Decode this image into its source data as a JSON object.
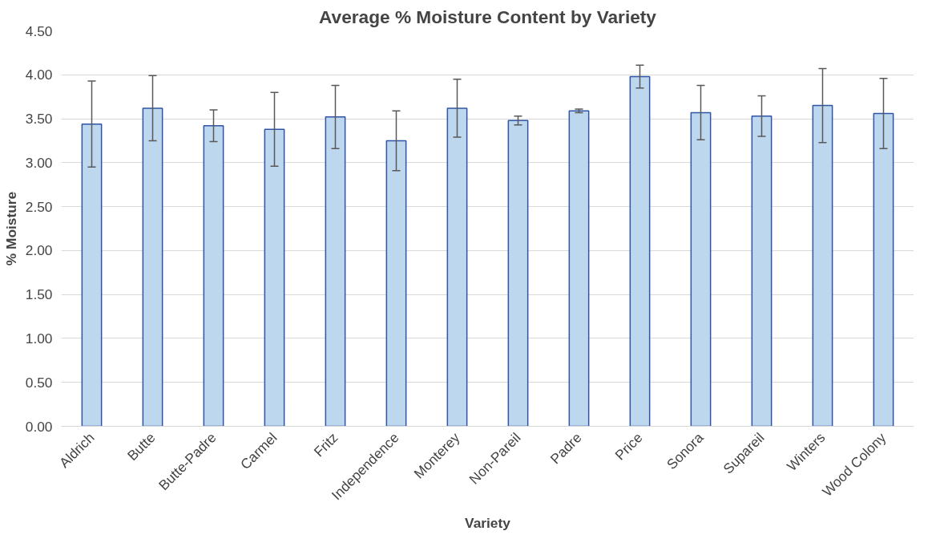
{
  "chart_data": {
    "type": "bar",
    "title": "Average % Moisture Content by Variety",
    "xlabel": "Variety",
    "ylabel": "% Moisture",
    "categories": [
      "Aldrich",
      "Butte",
      "Butte-Padre",
      "Carmel",
      "Fritz",
      "Independence",
      "Monterey",
      "Non-Pareil",
      "Padre",
      "Price",
      "Sonora",
      "Supareil",
      "Winters",
      "Wood Colony"
    ],
    "values": [
      3.44,
      3.62,
      3.42,
      3.38,
      3.52,
      3.25,
      3.62,
      3.48,
      3.59,
      3.98,
      3.57,
      3.53,
      3.65,
      3.56
    ],
    "errors": [
      0.49,
      0.37,
      0.18,
      0.42,
      0.36,
      0.34,
      0.33,
      0.05,
      0.02,
      0.13,
      0.31,
      0.23,
      0.42,
      0.4
    ],
    "color": "#bdd7ee",
    "ylim": [
      0,
      4.5
    ],
    "yticks": [
      {
        "value": 0,
        "label": "0.00"
      },
      {
        "value": 0.5,
        "label": "0.50"
      },
      {
        "value": 1,
        "label": "1.00"
      },
      {
        "value": 1.5,
        "label": "1.50"
      },
      {
        "value": 2,
        "label": "2.00"
      },
      {
        "value": 2.5,
        "label": "2.50"
      },
      {
        "value": 3,
        "label": "3.00"
      },
      {
        "value": 3.5,
        "label": "3.50"
      },
      {
        "value": 4,
        "label": "4.00"
      },
      {
        "value": 4.5,
        "label": "4.50"
      }
    ],
    "grid": "y"
  }
}
